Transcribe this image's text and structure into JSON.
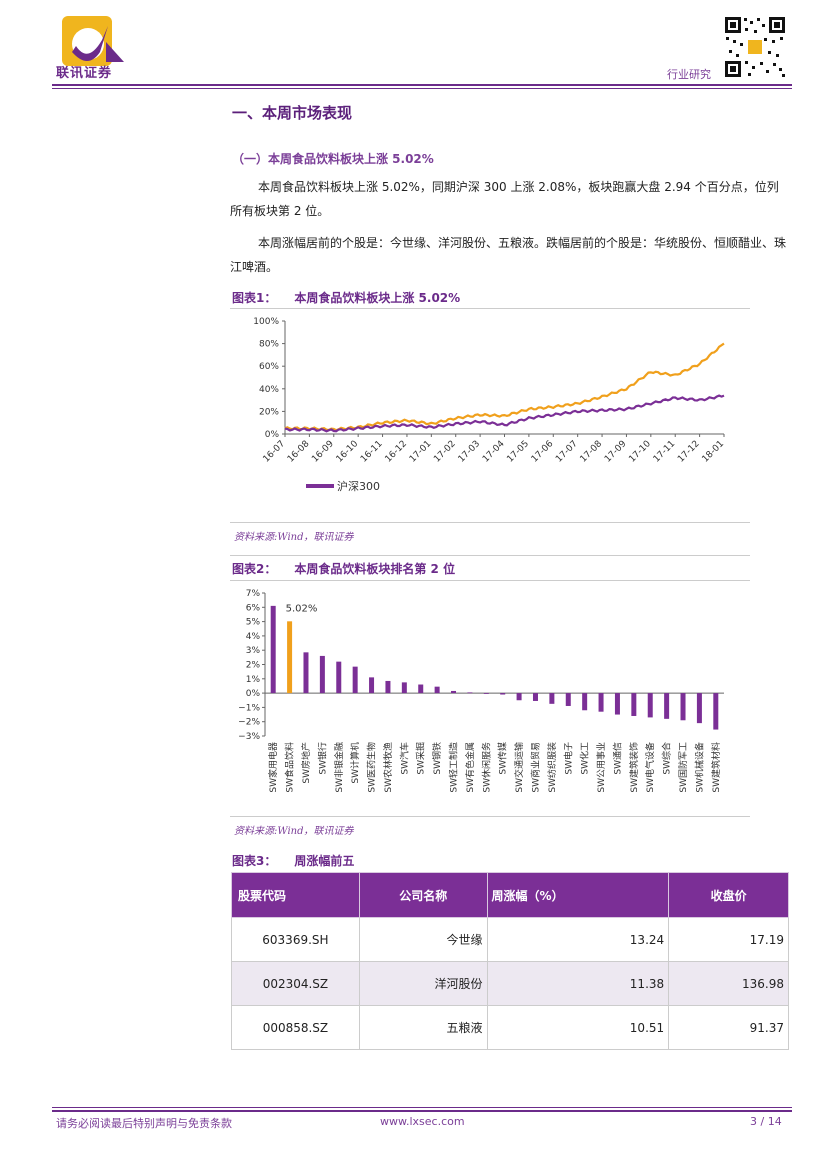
{
  "header": {
    "logo_text": "联讯证券",
    "category": "行业研究"
  },
  "section_title": "一、本周市场表现",
  "subsection_title": "（一）本周食品饮料板块上涨 5.02%",
  "paragraphs": [
    "本周食品饮料板块上涨 5.02%，同期沪深 300 上涨 2.08%，板块跑赢大盘 2.94 个百分点，位列所有板块第 2 位。",
    "本周涨幅居前的个股是：今世缘、洋河股份、五粮液。跌幅居前的个股是：华统股份、恒顺醋业、珠江啤酒。"
  ],
  "figure1": {
    "label": "图表1：",
    "title": "本周食品饮料板块上涨 5.02%",
    "source": "资料来源:Wind，联讯证券"
  },
  "figure2": {
    "label": "图表2：",
    "title": "本周食品饮料板块排名第 2 位",
    "source": "资料来源:Wind，联讯证券"
  },
  "figure3": {
    "label": "图表3：",
    "title": "周涨幅前五"
  },
  "chart_data": [
    {
      "type": "line",
      "x": [
        "16-07",
        "16-08",
        "16-09",
        "16-10",
        "16-11",
        "16-12",
        "17-01",
        "17-02",
        "17-03",
        "17-04",
        "17-05",
        "17-06",
        "17-07",
        "17-08",
        "17-09",
        "17-10",
        "17-11",
        "17-12",
        "18-01"
      ],
      "yticks": [
        "0%",
        "20%",
        "40%",
        "60%",
        "80%",
        "100%"
      ],
      "ylim": [
        0,
        100
      ],
      "series": [
        {
          "name": "",
          "color": "#f0a01c",
          "values": [
            5,
            5,
            4,
            6,
            10,
            12,
            9,
            14,
            17,
            16,
            22,
            24,
            27,
            33,
            40,
            55,
            52,
            62,
            80
          ]
        },
        {
          "name": "沪深300",
          "color": "#7b2f96",
          "values": [
            4,
            4,
            3,
            5,
            7,
            8,
            6,
            9,
            11,
            8,
            14,
            17,
            20,
            21,
            22,
            27,
            32,
            30,
            34
          ]
        }
      ],
      "legend": "bottom-left"
    },
    {
      "type": "bar",
      "annotation": "5.02%",
      "yticks": [
        "−3%",
        "−2%",
        "−1%",
        "0%",
        "1%",
        "2%",
        "3%",
        "4%",
        "5%",
        "6%",
        "7%"
      ],
      "ylim": [
        -3,
        7
      ],
      "highlight_color": "#f0a01c",
      "bar_color": "#7b2f96",
      "categories": [
        "SW家用电器",
        "SW食品饮料",
        "SW房地产",
        "SW银行",
        "SW非银金融",
        "SW计算机",
        "SW医药生物",
        "SW农林牧渔",
        "SW汽车",
        "SW采掘",
        "SW钢铁",
        "SW轻工制造",
        "SW有色金属",
        "SW休闲服务",
        "SW传媒",
        "SW交通运输",
        "SW商业贸易",
        "SW纺织服装",
        "SW电子",
        "SW化工",
        "SW公用事业",
        "SW通信",
        "SW建筑装饰",
        "SW电气设备",
        "SW综合",
        "SW国防军工",
        "SW机械设备",
        "SW建筑材料"
      ],
      "values": [
        6.1,
        5.02,
        2.85,
        2.6,
        2.2,
        1.85,
        1.1,
        0.85,
        0.75,
        0.6,
        0.45,
        0.15,
        0.05,
        0.0,
        -0.1,
        -0.5,
        -0.55,
        -0.75,
        -0.9,
        -1.2,
        -1.3,
        -1.5,
        -1.6,
        -1.7,
        -1.8,
        -1.9,
        -2.1,
        -2.55
      ]
    }
  ],
  "table": {
    "headers": [
      "股票代码",
      "公司名称",
      "周涨幅（%）",
      "收盘价"
    ],
    "rows": [
      [
        "603369.SH",
        "今世缘",
        "13.24",
        "17.19"
      ],
      [
        "002304.SZ",
        "洋河股份",
        "11.38",
        "136.98"
      ],
      [
        "000858.SZ",
        "五粮液",
        "10.51",
        "91.37"
      ]
    ]
  },
  "footer": {
    "disclaimer": "请务必阅读最后特别声明与免责条款",
    "website": "www.lxsec.com",
    "page": "3 / 14"
  }
}
